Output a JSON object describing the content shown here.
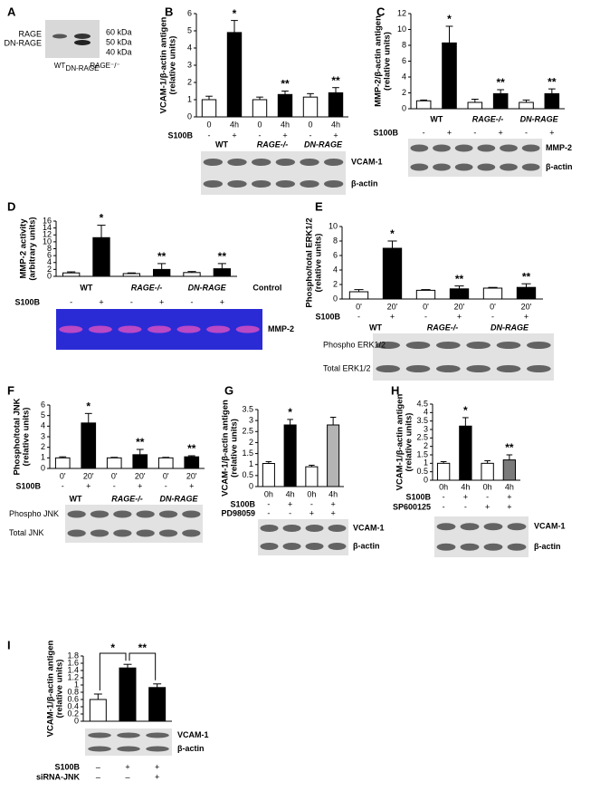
{
  "panel_a": {
    "letter": "A",
    "bands": [
      "RAGE",
      "DN-RAGE"
    ],
    "markers": [
      "60 kDa",
      "50 kDa",
      "40 kDa"
    ],
    "lanes": [
      "WT",
      "DN-RAGE",
      "RAGE⁻/⁻"
    ]
  },
  "chart_data": [
    {
      "type": "bar",
      "panel": "B",
      "ylabel": [
        "VCAM-1/β-actin antigen",
        "(relative units)"
      ],
      "categories": [
        "0",
        "4h",
        "0",
        "4h",
        "0",
        "4h"
      ],
      "values": [
        1.0,
        4.9,
        1.0,
        1.3,
        1.15,
        1.4
      ],
      "errors": [
        0.2,
        0.7,
        0.15,
        0.2,
        0.2,
        0.3
      ],
      "colors": [
        "#ffffff",
        "#000000",
        "#ffffff",
        "#000000",
        "#ffffff",
        "#000000"
      ],
      "stars": [
        null,
        "*",
        null,
        "**",
        null,
        "**"
      ],
      "ylim": [
        0,
        6
      ],
      "yticks": [
        0,
        1,
        2,
        3,
        4,
        5,
        6
      ],
      "rows": [
        {
          "name": "S100B",
          "values": [
            "-",
            "+",
            "-",
            "+",
            "-",
            "+"
          ]
        }
      ],
      "groups": [
        "WT",
        "RAGE-/-",
        "DN-RAGE"
      ],
      "blot_labels": [
        "VCAM-1",
        "β-actin"
      ],
      "blot_color": "#e2e2e2"
    },
    {
      "type": "bar",
      "panel": "C",
      "ylabel": [
        "MMP-2/β-actin antigen",
        "(relative units)"
      ],
      "values": [
        1.0,
        8.3,
        0.8,
        1.9,
        0.8,
        1.9
      ],
      "errors": [
        0.1,
        2.1,
        0.4,
        0.5,
        0.3,
        0.6
      ],
      "colors": [
        "#ffffff",
        "#000000",
        "#ffffff",
        "#000000",
        "#ffffff",
        "#000000"
      ],
      "stars": [
        null,
        "*",
        null,
        "**",
        null,
        "**"
      ],
      "ylim": [
        0,
        12
      ],
      "yticks": [
        0,
        2,
        4,
        6,
        8,
        10,
        12
      ],
      "rows": [
        {
          "name": "S100B",
          "values": [
            "-",
            "+",
            "-",
            "+",
            "-",
            "+"
          ]
        }
      ],
      "groups": [
        "WT",
        "RAGE-/-",
        "DN-RAGE"
      ],
      "blot_labels": [
        "MMP-2",
        "β-actin"
      ],
      "blot_color": "#e2e2e2"
    },
    {
      "type": "bar",
      "panel": "D",
      "ylabel": [
        "MMP-2 activity",
        "(arbitrary units)"
      ],
      "values": [
        1.0,
        11.2,
        0.8,
        2.0,
        1.1,
        2.2
      ],
      "errors": [
        0.3,
        3.6,
        0.2,
        1.7,
        0.3,
        1.5
      ],
      "colors": [
        "#ffffff",
        "#000000",
        "#ffffff",
        "#000000",
        "#ffffff",
        "#000000"
      ],
      "stars": [
        null,
        "*",
        null,
        "**",
        null,
        "**"
      ],
      "ylim": [
        0,
        16
      ],
      "yticks": [
        0,
        2,
        4,
        6,
        8,
        10,
        12,
        14,
        16
      ],
      "rows": [
        {
          "name": "S100B",
          "values": [
            "-",
            "+",
            "-",
            "+",
            "-",
            "+"
          ]
        }
      ],
      "groups": [
        "WT",
        "RAGE-/-",
        "DN-RAGE",
        "Control"
      ],
      "blot_labels": [
        "MMP-2"
      ],
      "blot_color": "#2b2bd6"
    },
    {
      "type": "bar",
      "panel": "E",
      "ylabel": [
        "Phospho/total ERK1/2",
        "(relative units)"
      ],
      "categories": [
        "0'",
        "20'",
        "0'",
        "20'",
        "0'",
        "20'"
      ],
      "values": [
        1.0,
        7.0,
        1.2,
        1.4,
        1.5,
        1.6
      ],
      "errors": [
        0.3,
        1.0,
        0.1,
        0.4,
        0.1,
        0.5
      ],
      "colors": [
        "#ffffff",
        "#000000",
        "#ffffff",
        "#000000",
        "#ffffff",
        "#000000"
      ],
      "stars": [
        null,
        "*",
        null,
        "**",
        null,
        "**"
      ],
      "ylim": [
        0,
        10
      ],
      "yticks": [
        0,
        2,
        4,
        6,
        8,
        10
      ],
      "rows": [
        {
          "name": "S100B",
          "values": [
            "-",
            "+",
            "-",
            "+",
            "-",
            "+"
          ]
        }
      ],
      "groups": [
        "WT",
        "RAGE-/-",
        "DN-RAGE"
      ],
      "blot_labels": [
        "Phospho ERK1/2",
        "Total ERK1/2"
      ],
      "blot_color": "#e2e2e2"
    },
    {
      "type": "bar",
      "panel": "F",
      "ylabel": [
        "Phospho/total JNK",
        "(relative units)"
      ],
      "categories": [
        "0'",
        "20'",
        "0'",
        "20'",
        "0'",
        "20'"
      ],
      "values": [
        1.0,
        4.3,
        1.0,
        1.3,
        1.0,
        1.1
      ],
      "errors": [
        0.1,
        0.9,
        0.05,
        0.5,
        0.05,
        0.1
      ],
      "colors": [
        "#ffffff",
        "#000000",
        "#ffffff",
        "#000000",
        "#ffffff",
        "#000000"
      ],
      "stars": [
        null,
        "*",
        null,
        "**",
        null,
        "**"
      ],
      "ylim": [
        0,
        6
      ],
      "yticks": [
        0,
        1,
        2,
        3,
        4,
        5,
        6
      ],
      "rows": [
        {
          "name": "S100B",
          "values": [
            "-",
            "+",
            "-",
            "+",
            "-",
            "+"
          ]
        }
      ],
      "groups": [
        "WT",
        "RAGE-/-",
        "DN-RAGE"
      ],
      "blot_labels": [
        "Phospho JNK",
        "Total JNK"
      ],
      "blot_color": "#e2e2e2"
    },
    {
      "type": "bar",
      "panel": "G",
      "ylabel": [
        "VCAM-1/β-actin antigen",
        "(relative units)"
      ],
      "categories": [
        "0h",
        "4h",
        "0h",
        "4h"
      ],
      "values": [
        1.05,
        2.8,
        0.9,
        2.8
      ],
      "errors": [
        0.08,
        0.25,
        0.07,
        0.35
      ],
      "colors": [
        "#ffffff",
        "#000000",
        "#ffffff",
        "#b4b4b4"
      ],
      "stars": [
        null,
        "*",
        null,
        null
      ],
      "ylim": [
        0,
        3.5
      ],
      "yticks": [
        0,
        0.5,
        1,
        1.5,
        2,
        2.5,
        3,
        3.5
      ],
      "rows": [
        {
          "name": "S100B",
          "values": [
            "-",
            "+",
            "-",
            "+"
          ]
        },
        {
          "name": "PD98059",
          "values": [
            "-",
            "-",
            "+",
            "+"
          ]
        }
      ],
      "blot_labels": [
        "VCAM-1",
        "β-actin"
      ],
      "blot_color": "#e2e2e2"
    },
    {
      "type": "bar",
      "panel": "H",
      "ylabel": [
        "VCAM-1/β-actin antigen",
        "(relative units)"
      ],
      "categories": [
        "0h",
        "4h",
        "0h",
        "4h"
      ],
      "values": [
        1.0,
        3.2,
        1.0,
        1.2
      ],
      "errors": [
        0.1,
        0.5,
        0.15,
        0.3
      ],
      "colors": [
        "#ffffff",
        "#000000",
        "#ffffff",
        "#7a7a7a"
      ],
      "stars": [
        null,
        "*",
        null,
        "**"
      ],
      "ylim": [
        0,
        4.5
      ],
      "yticks": [
        0,
        0.5,
        1,
        1.5,
        2,
        2.5,
        3,
        3.5,
        4,
        4.5
      ],
      "rows": [
        {
          "name": "S100B",
          "values": [
            "-",
            "+",
            "-",
            "+"
          ]
        },
        {
          "name": "SP600125",
          "values": [
            "-",
            "-",
            "+",
            "+"
          ]
        }
      ],
      "blot_labels": [
        "VCAM-1",
        "β-actin"
      ],
      "blot_color": "#e2e2e2"
    },
    {
      "type": "bar",
      "panel": "I",
      "ylabel": [
        "VCAM-1/β-actin antigen",
        "(relative units)"
      ],
      "values": [
        0.6,
        1.47,
        0.93
      ],
      "errors": [
        0.15,
        0.1,
        0.1
      ],
      "colors": [
        "#ffffff",
        "#000000",
        "#000000"
      ],
      "brackets": [
        "*",
        "**"
      ],
      "ylim": [
        0,
        1.8
      ],
      "yticks": [
        0,
        0.2,
        0.4,
        0.6,
        0.8,
        1,
        1.2,
        1.4,
        1.6,
        1.8
      ],
      "rows": [
        {
          "name": "S100B",
          "values": [
            "–",
            "+",
            "+"
          ]
        },
        {
          "name": "siRNA-JNK",
          "values": [
            "–",
            "–",
            "+"
          ]
        }
      ],
      "blot_labels": [
        "VCAM-1",
        "β-actin"
      ],
      "blot_color": "#e2e2e2"
    }
  ]
}
